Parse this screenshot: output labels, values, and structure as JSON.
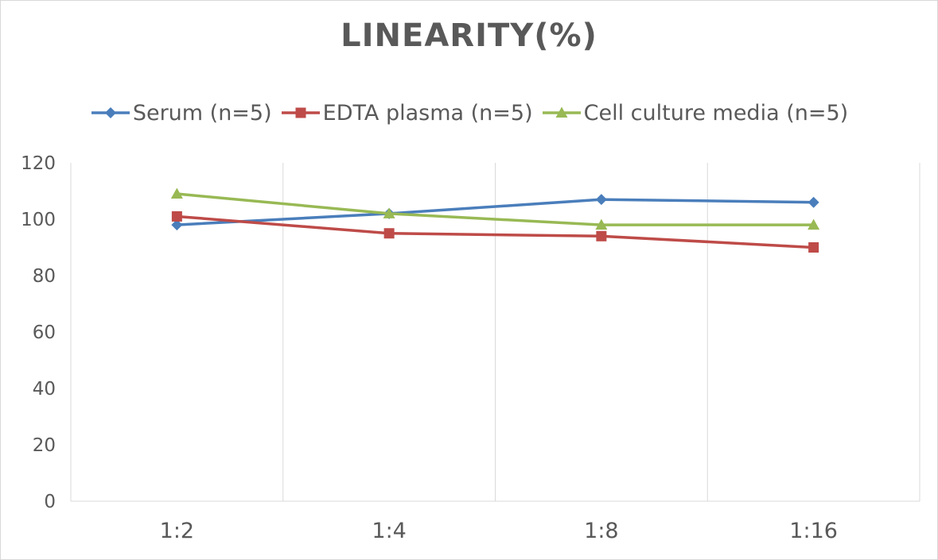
{
  "chart_data": {
    "type": "line",
    "title": "LINEARITY(%)",
    "xlabel": "",
    "ylabel": "",
    "categories": [
      "1:2",
      "1:4",
      "1:8",
      "1:16"
    ],
    "ylim": [
      0,
      120
    ],
    "yticks": [
      0,
      20,
      40,
      60,
      80,
      100,
      120
    ],
    "grid": "vertical",
    "legend_position": "top",
    "series": [
      {
        "name": "Serum (n=5)",
        "values": [
          98,
          102,
          107,
          106
        ],
        "color": "#4a7ebb",
        "marker": "diamond"
      },
      {
        "name": "EDTA plasma (n=5)",
        "values": [
          101,
          95,
          94,
          90
        ],
        "color": "#be4b48",
        "marker": "square"
      },
      {
        "name": "Cell culture media (n=5)",
        "values": [
          109,
          102,
          98,
          98
        ],
        "color": "#98b954",
        "marker": "triangle"
      }
    ]
  }
}
